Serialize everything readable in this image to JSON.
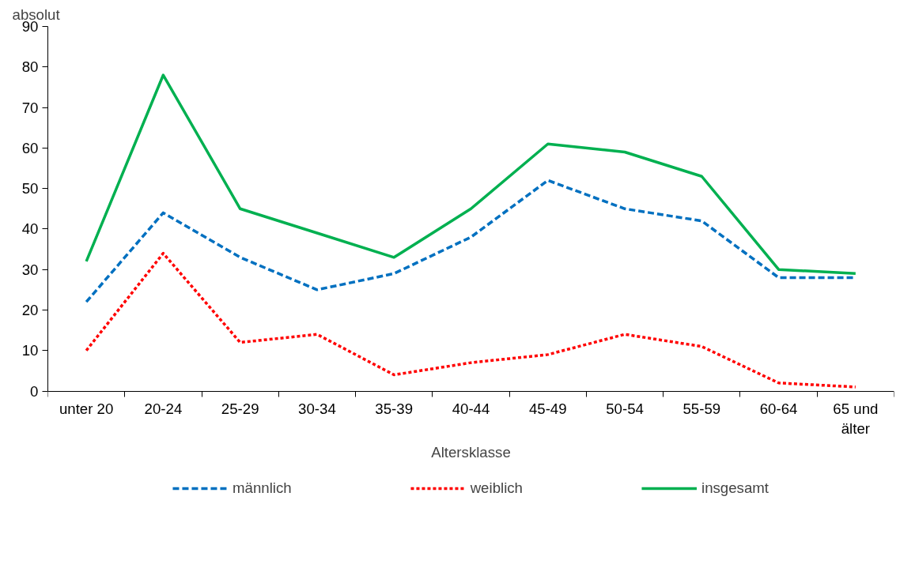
{
  "chart_data": {
    "type": "line",
    "xlabel": "Altersklasse",
    "ylabel": "absolut",
    "categories": [
      "unter 20",
      "20-24",
      "25-29",
      "30-34",
      "35-39",
      "40-44",
      "45-49",
      "50-54",
      "55-59",
      "60-64",
      "65 und älter"
    ],
    "series": [
      {
        "name": "männlich",
        "color": "#0070c0",
        "line_style": "dashed",
        "values": [
          22,
          44,
          33,
          25,
          29,
          38,
          52,
          45,
          42,
          28,
          28
        ]
      },
      {
        "name": "weiblich",
        "color": "#ff0000",
        "line_style": "dotted",
        "values": [
          10,
          34,
          12,
          14,
          4,
          7,
          9,
          14,
          11,
          2,
          1
        ]
      },
      {
        "name": "insgesamt",
        "color": "#00b050",
        "line_style": "solid",
        "values": [
          32,
          78,
          45,
          39,
          33,
          45,
          61,
          59,
          53,
          30,
          29
        ]
      }
    ],
    "ylim": [
      0,
      90
    ],
    "yticks": [
      0,
      10,
      20,
      30,
      40,
      50,
      60,
      70,
      80,
      90
    ],
    "grid": false,
    "legend": "bottom",
    "marker": "none"
  }
}
